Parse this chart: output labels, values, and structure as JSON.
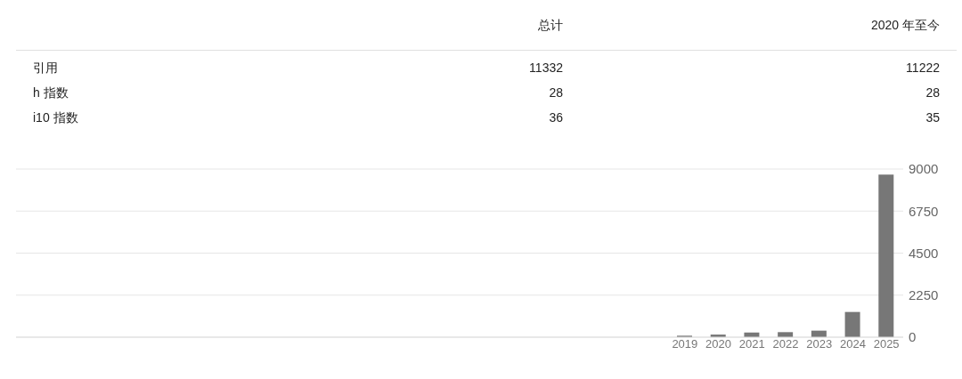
{
  "chart_data": [
    {
      "type": "other",
      "annotations": [
        "总计",
        "2020 年至今",
        "引用",
        "11332",
        "11222",
        "h 指数",
        "28",
        "28",
        "i10 指数",
        "36",
        "35"
      ]
    },
    {
      "type": "bar",
      "categories": [
        "2019",
        "2020",
        "2021",
        "2022",
        "2023",
        "2024",
        "2025"
      ],
      "values": [
        80,
        140,
        250,
        270,
        350,
        1350,
        8700
      ],
      "color": "#777777",
      "ylim": [
        0,
        9000
      ],
      "yticks": [
        0,
        2250,
        4500,
        6750,
        9000
      ],
      "grid": "y"
    }
  ]
}
